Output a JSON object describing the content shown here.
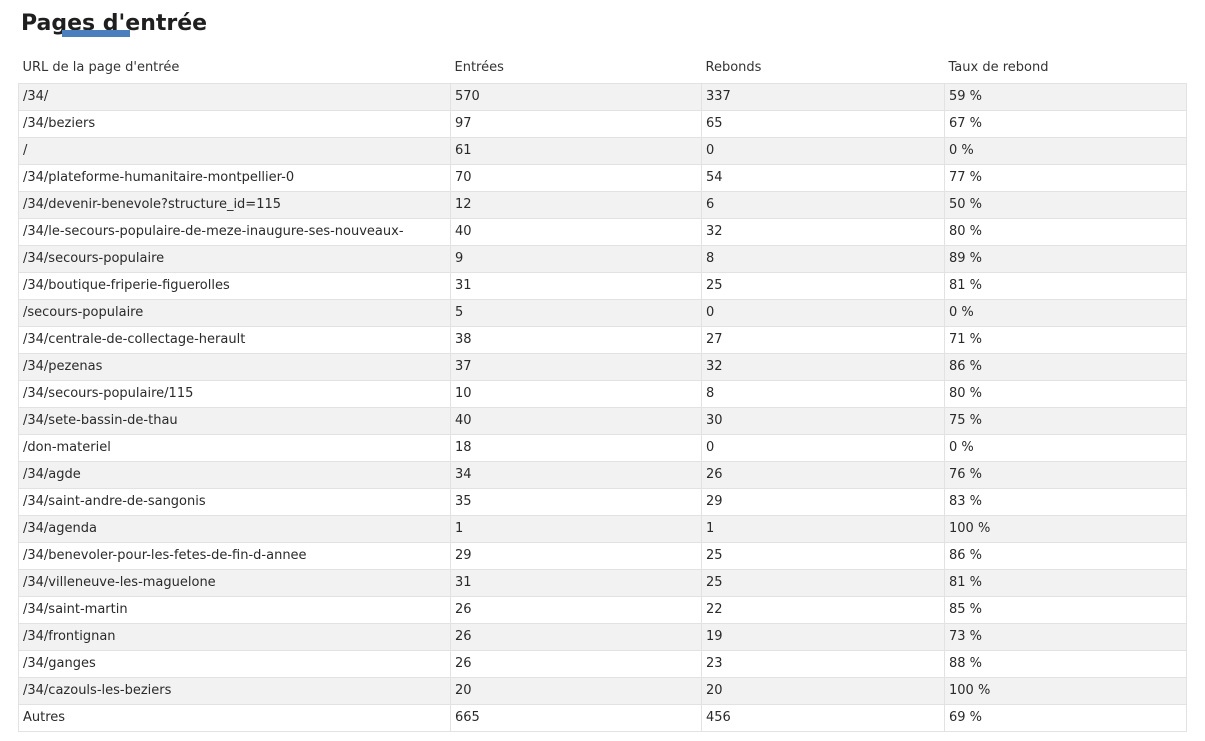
{
  "page": {
    "title": "Pages d'entrée"
  },
  "table": {
    "columns": [
      "URL de la page d'entrée",
      "Entrées",
      "Rebonds",
      "Taux de rebond"
    ],
    "rows": [
      [
        "/34/",
        "570",
        "337",
        "59 %"
      ],
      [
        "/34/beziers",
        "97",
        "65",
        "67 %"
      ],
      [
        "/",
        "61",
        "0",
        "0 %"
      ],
      [
        "/34/plateforme-humanitaire-montpellier-0",
        "70",
        "54",
        "77 %"
      ],
      [
        "/34/devenir-benevole?structure_id=115",
        "12",
        "6",
        "50 %"
      ],
      [
        "/34/le-secours-populaire-de-meze-inaugure-ses-nouveaux-",
        "40",
        "32",
        "80 %"
      ],
      [
        "/34/secours-populaire",
        "9",
        "8",
        "89 %"
      ],
      [
        "/34/boutique-friperie-figuerolles",
        "31",
        "25",
        "81 %"
      ],
      [
        "/secours-populaire",
        "5",
        "0",
        "0 %"
      ],
      [
        "/34/centrale-de-collectage-herault",
        "38",
        "27",
        "71 %"
      ],
      [
        "/34/pezenas",
        "37",
        "32",
        "86 %"
      ],
      [
        "/34/secours-populaire/115",
        "10",
        "8",
        "80 %"
      ],
      [
        "/34/sete-bassin-de-thau",
        "40",
        "30",
        "75 %"
      ],
      [
        "/don-materiel",
        "18",
        "0",
        "0 %"
      ],
      [
        "/34/agde",
        "34",
        "26",
        "76 %"
      ],
      [
        "/34/saint-andre-de-sangonis",
        "35",
        "29",
        "83 %"
      ],
      [
        "/34/agenda",
        "1",
        "1",
        "100 %"
      ],
      [
        "/34/benevoler-pour-les-fetes-de-fin-d-annee",
        "29",
        "25",
        "86 %"
      ],
      [
        "/34/villeneuve-les-maguelone",
        "31",
        "25",
        "81 %"
      ],
      [
        "/34/saint-martin",
        "26",
        "22",
        "85 %"
      ],
      [
        "/34/frontignan",
        "26",
        "19",
        "73 %"
      ],
      [
        "/34/ganges",
        "26",
        "23",
        "88 %"
      ],
      [
        "/34/cazouls-les-beziers",
        "20",
        "20",
        "100 %"
      ],
      [
        "Autres",
        "665",
        "456",
        "69 %"
      ]
    ]
  },
  "colors": {
    "stripe": "#f2f2f2",
    "border": "#e2e2e2",
    "text": "#2a2a2a",
    "accent_blue": "#4a7ebc"
  }
}
